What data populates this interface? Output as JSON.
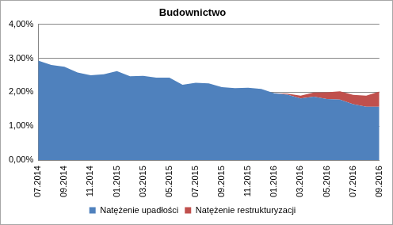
{
  "chart_data": {
    "type": "area",
    "title": "Budownictwo",
    "categories": [
      "07.2014",
      null,
      "09.2014",
      null,
      "11.2014",
      null,
      "01.2015",
      null,
      "03.2015",
      null,
      "05.2015",
      null,
      "07.2015",
      null,
      "09.2015",
      null,
      "11.2015",
      null,
      "01.2016",
      null,
      "03.2016",
      null,
      "05.2016",
      null,
      "07.2016",
      null,
      "09.2016"
    ],
    "series": [
      {
        "name": "Natężenie upadłości",
        "color": "#4f81bd",
        "values": [
          2.93,
          2.8,
          2.75,
          2.58,
          2.5,
          2.53,
          2.62,
          2.47,
          2.48,
          2.43,
          2.43,
          2.22,
          2.28,
          2.26,
          2.15,
          2.12,
          2.13,
          2.1,
          1.97,
          1.93,
          1.82,
          1.87,
          1.8,
          1.78,
          1.65,
          1.57,
          1.57
        ]
      },
      {
        "name": "Natężenie restrukturyzacji",
        "color": "#c0504d",
        "values": [
          0,
          0,
          0,
          0,
          0,
          0,
          0,
          0,
          0,
          0,
          0,
          0,
          0,
          0,
          0,
          0,
          0,
          0,
          0,
          0.03,
          0.08,
          0.12,
          0.2,
          0.25,
          0.27,
          0.33,
          0.45
        ]
      }
    ],
    "stacked": true,
    "ylim": [
      0,
      4
    ],
    "yticks": [
      {
        "value": 0,
        "label": "0,00%"
      },
      {
        "value": 1,
        "label": "1,00%"
      },
      {
        "value": 2,
        "label": "2,00%"
      },
      {
        "value": 3,
        "label": "3,00%"
      },
      {
        "value": 4,
        "label": "4,00%"
      }
    ],
    "grid": true,
    "legend": "bottom"
  }
}
